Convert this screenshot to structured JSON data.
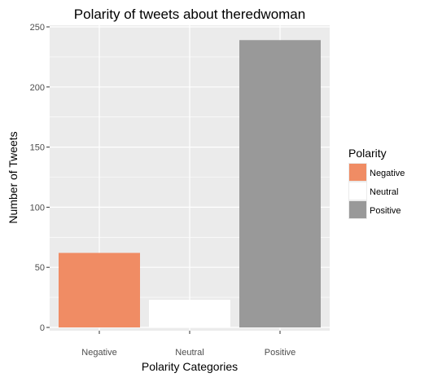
{
  "chart_data": {
    "type": "bar",
    "title": "Polarity of tweets about theredwoman",
    "xlabel": "Polarity Categories",
    "ylabel": "Number of Tweets",
    "categories": [
      "Negative",
      "Neutral",
      "Positive"
    ],
    "values": [
      62,
      23,
      239
    ],
    "ylim": [
      0,
      250
    ],
    "yticks": [
      0,
      50,
      100,
      150,
      200,
      250
    ],
    "colors": [
      "#F08C64",
      "#FFFFFF",
      "#999999"
    ],
    "grid": true,
    "panel_background": "#EBEBEB",
    "legend": {
      "title": "Polarity",
      "placement": "right",
      "entries": [
        "Negative",
        "Neutral",
        "Positive"
      ]
    }
  }
}
